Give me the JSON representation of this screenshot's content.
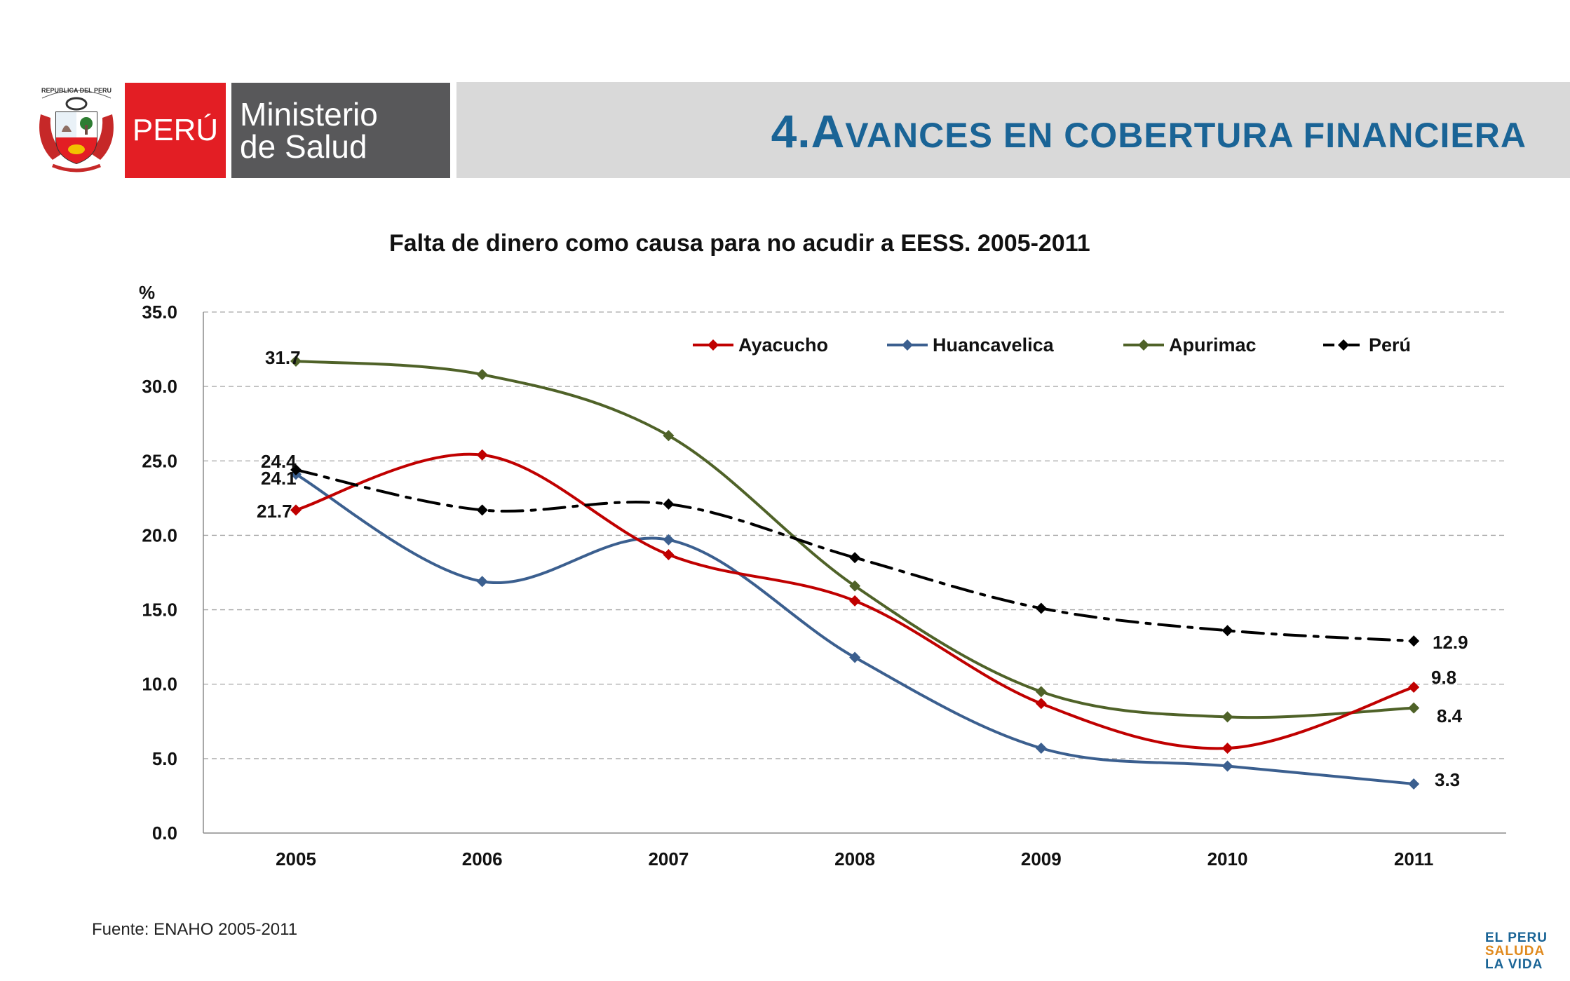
{
  "header": {
    "title_num": "4.",
    "title_cap": "A",
    "title_rest": "VANCES EN COBERTURA FINANCIERA",
    "peru_label": "PERÚ",
    "ministry_line1": "Ministerio",
    "ministry_line2": "de Salud",
    "crest_text": "REPUBLICA DEL PERU"
  },
  "chart_data": {
    "type": "line",
    "title": "Falta de dinero como causa para no acudir a EESS. 2005-2011",
    "ylabel": "%",
    "xlabel": "",
    "categories": [
      "2005",
      "2006",
      "2007",
      "2008",
      "2009",
      "2010",
      "2011"
    ],
    "ylim": [
      0,
      35
    ],
    "yticks": [
      "0.0",
      "5.0",
      "10.0",
      "15.0",
      "20.0",
      "25.0",
      "30.0",
      "35.0"
    ],
    "grid": true,
    "legend_position": "top-right",
    "series": [
      {
        "name": "Ayacucho",
        "color": "#c00000",
        "dash": "solid",
        "values": [
          21.7,
          25.4,
          18.7,
          15.6,
          8.7,
          5.7,
          9.8
        ]
      },
      {
        "name": "Huancavelica",
        "color": "#3b5f8f",
        "dash": "solid",
        "values": [
          24.1,
          16.9,
          19.7,
          11.8,
          5.7,
          4.5,
          3.3
        ]
      },
      {
        "name": "Apurimac",
        "color": "#4f6228",
        "dash": "solid",
        "values": [
          31.7,
          30.8,
          26.7,
          16.6,
          9.5,
          7.8,
          8.4
        ]
      },
      {
        "name": "Perú",
        "color": "#000000",
        "dash": "dashdot",
        "values": [
          24.4,
          21.7,
          22.1,
          18.5,
          15.1,
          13.6,
          12.9
        ]
      }
    ],
    "data_labels": [
      {
        "series": "Apurimac",
        "index": 0,
        "text": "31.7"
      },
      {
        "series": "Perú",
        "index": 0,
        "text": "24.4"
      },
      {
        "series": "Huancavelica",
        "index": 0,
        "text": "24.1"
      },
      {
        "series": "Ayacucho",
        "index": 0,
        "text": "21.7"
      },
      {
        "series": "Perú",
        "index": 6,
        "text": "12.9"
      },
      {
        "series": "Ayacucho",
        "index": 6,
        "text": "9.8"
      },
      {
        "series": "Apurimac",
        "index": 6,
        "text": "8.4"
      },
      {
        "series": "Huancavelica",
        "index": 6,
        "text": "3.3"
      }
    ]
  },
  "footer": {
    "source": "Fuente: ENAHO 2005-2011",
    "slogan_line1": "EL PERU",
    "slogan_line2": "SALUDA",
    "slogan_line3": "LA VIDA"
  }
}
